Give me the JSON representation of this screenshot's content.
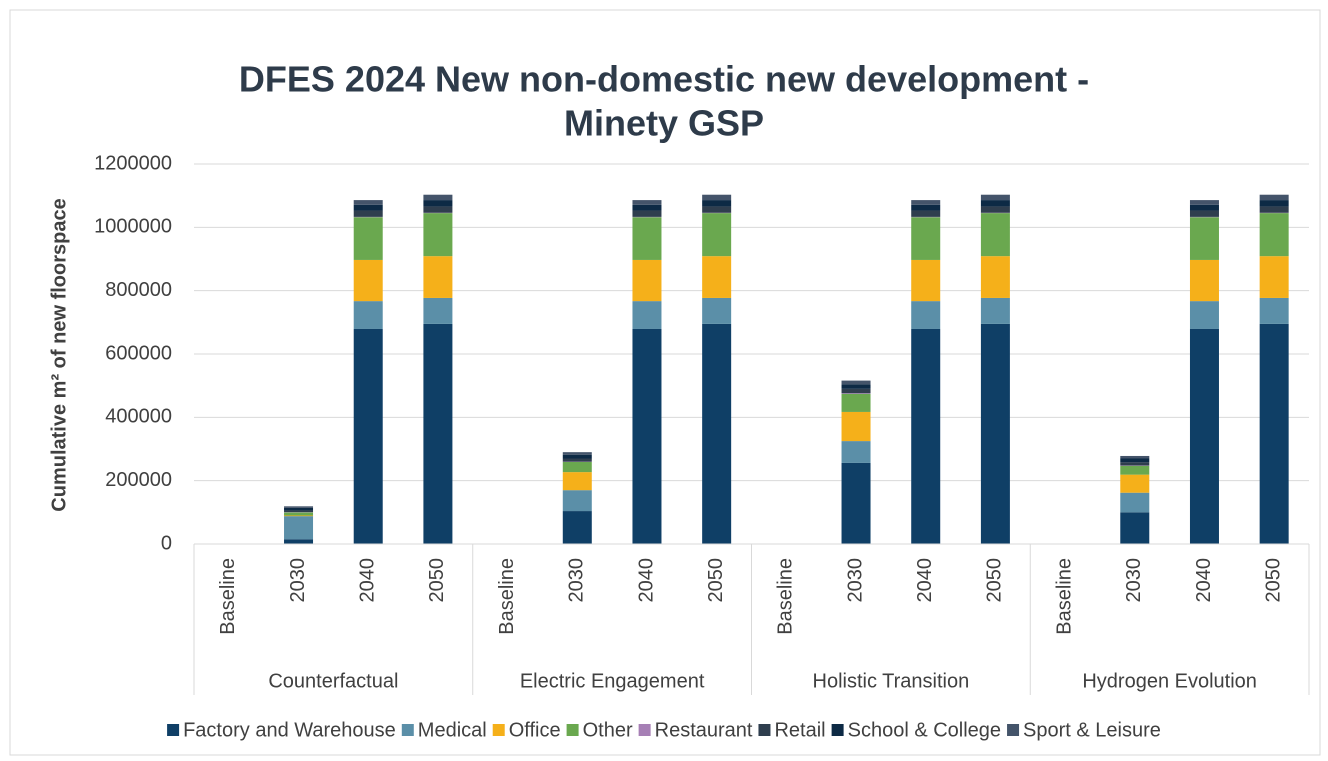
{
  "chart_data": {
    "type": "stacked_bar",
    "title": "DFES 2024 New non-domestic new development -",
    "subtitle": "Minety GSP",
    "y_label": "Cumulative m² of new floorspace",
    "groups": [
      "Counterfactual",
      "Electric Engagement",
      "Holistic Transition",
      "Hydrogen Evolution"
    ],
    "categories": [
      "Baseline",
      "2030",
      "2040",
      "2050",
      "Baseline",
      "2030",
      "2040",
      "2050",
      "Baseline",
      "2030",
      "2040",
      "2050",
      "Baseline",
      "2030",
      "2040",
      "2050"
    ],
    "series": [
      {
        "name": "Factory and Warehouse",
        "color": "#0f3f66",
        "values": [
          0,
          15000,
          679000,
          695000,
          0,
          104000,
          679000,
          695000,
          0,
          256000,
          679000,
          695000,
          0,
          100000,
          679000,
          695000
        ]
      },
      {
        "name": "Medical",
        "color": "#5b8fa8",
        "values": [
          0,
          73000,
          88000,
          82000,
          0,
          66000,
          88000,
          82000,
          0,
          69000,
          88000,
          82000,
          0,
          62000,
          88000,
          82000
        ]
      },
      {
        "name": "Office",
        "color": "#f5b01a",
        "values": [
          0,
          2000,
          130000,
          132000,
          0,
          57000,
          130000,
          132000,
          0,
          92000,
          130000,
          132000,
          0,
          57000,
          130000,
          132000
        ]
      },
      {
        "name": "Other",
        "color": "#6aa84f",
        "values": [
          0,
          10000,
          135000,
          136000,
          0,
          32000,
          135000,
          136000,
          0,
          57000,
          135000,
          136000,
          0,
          28000,
          135000,
          136000
        ]
      },
      {
        "name": "Restaurant",
        "color": "#a67fb5",
        "values": [
          0,
          1000,
          1000,
          1000,
          0,
          1000,
          1000,
          1000,
          0,
          2000,
          1000,
          1000,
          0,
          1000,
          1000,
          1000
        ]
      },
      {
        "name": "Retail",
        "color": "#2f3e4e",
        "values": [
          0,
          5000,
          20000,
          20000,
          0,
          10000,
          20000,
          20000,
          0,
          14000,
          20000,
          20000,
          0,
          10000,
          20000,
          20000
        ]
      },
      {
        "name": "School & College",
        "color": "#0d2a45",
        "values": [
          0,
          8000,
          18000,
          20000,
          0,
          12000,
          18000,
          20000,
          0,
          14000,
          18000,
          20000,
          0,
          12000,
          18000,
          20000
        ]
      },
      {
        "name": "Sport & Leisure",
        "color": "#44546a",
        "values": [
          0,
          5000,
          15000,
          17000,
          0,
          8000,
          15000,
          17000,
          0,
          12000,
          15000,
          17000,
          0,
          8000,
          15000,
          17000
        ]
      }
    ],
    "ylim": [
      0,
      1200000
    ],
    "yticks": [
      0,
      200000,
      400000,
      600000,
      800000,
      1000000,
      1200000
    ],
    "grid": true,
    "legend": "bottom"
  }
}
